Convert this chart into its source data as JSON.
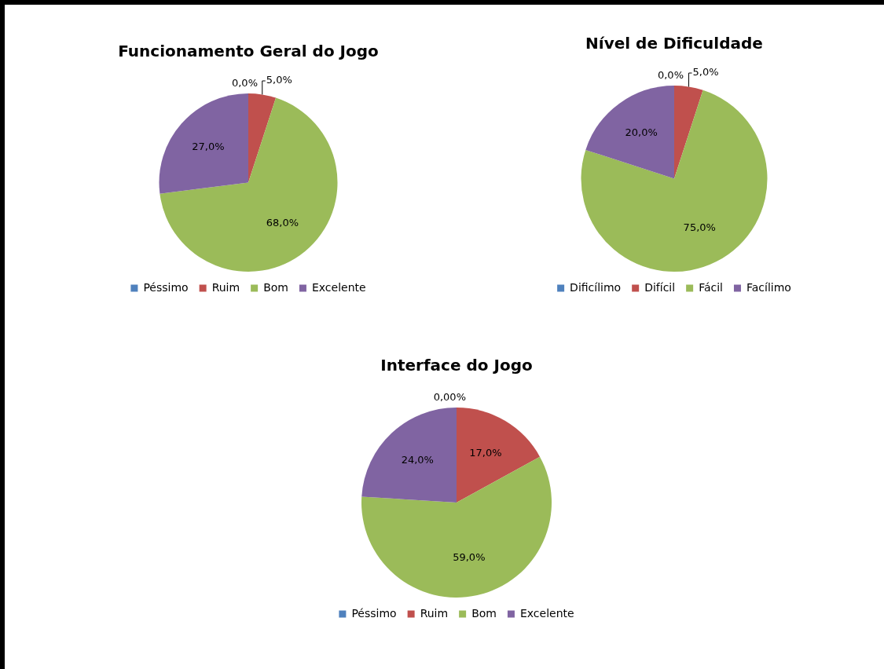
{
  "chart_data": [
    {
      "type": "pie",
      "title": "Funcionamento Geral do Jogo",
      "categories": [
        "Péssimo",
        "Ruim",
        "Bom",
        "Excelente"
      ],
      "values": [
        0,
        5,
        68,
        27
      ],
      "colors": [
        "#4f81bd",
        "#c0504d",
        "#9bbb59",
        "#8064a2"
      ],
      "value_labels": [
        "0,0%",
        "5,0%",
        "68,0%",
        "27,0%"
      ],
      "legend": "bottom"
    },
    {
      "type": "pie",
      "title": "Nível de Dificuldade",
      "categories": [
        "Dificílimo",
        "Difícil",
        "Fácil",
        "Facílimo"
      ],
      "values": [
        0,
        5,
        75,
        20
      ],
      "colors": [
        "#4f81bd",
        "#c0504d",
        "#9bbb59",
        "#8064a2"
      ],
      "value_labels": [
        "0,0%",
        "5,0%",
        "75,0%",
        "20,0%"
      ],
      "legend": "bottom"
    },
    {
      "type": "pie",
      "title": "Interface do Jogo",
      "categories": [
        "Péssimo",
        "Ruim",
        "Bom",
        "Excelente"
      ],
      "values": [
        0,
        17,
        59,
        24
      ],
      "colors": [
        "#4f81bd",
        "#c0504d",
        "#9bbb59",
        "#8064a2"
      ],
      "value_labels": [
        "0,00%",
        "17,0%",
        "59,0%",
        "24,0%"
      ],
      "legend": "bottom"
    }
  ]
}
